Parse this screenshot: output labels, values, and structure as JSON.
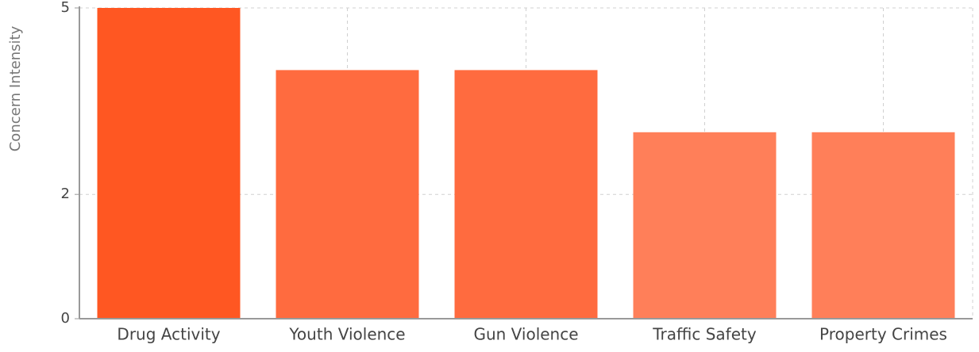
{
  "chart_data": {
    "type": "bar",
    "y_label": "Concern Intensity",
    "categories": [
      "Drug Activity",
      "Youth Violence",
      "Gun Violence",
      "Traffic Safety",
      "Property Crimes"
    ],
    "values": [
      5,
      4,
      4,
      3,
      3
    ],
    "colors": [
      "#ff5722",
      "#ff6b3f",
      "#ff6b3f",
      "#ff7f59",
      "#ff7f59"
    ],
    "ylim": [
      0,
      5
    ],
    "yticks": [
      0,
      2,
      5
    ],
    "grid": true
  }
}
